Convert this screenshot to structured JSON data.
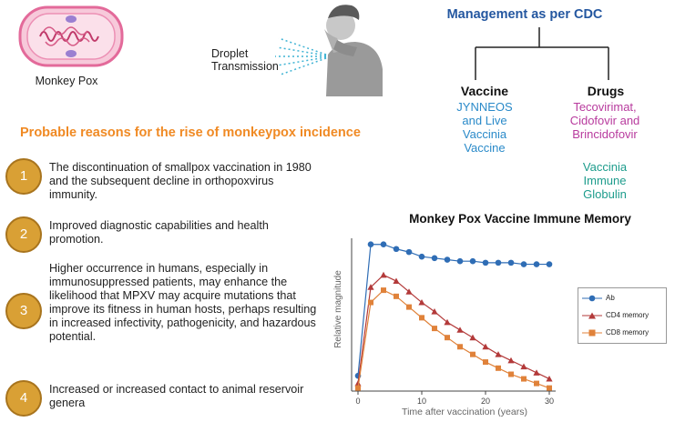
{
  "virus": {
    "label": "Monkey Pox"
  },
  "transmission": {
    "line1": "Droplet",
    "line2": "Transmission"
  },
  "management": {
    "title": "Management as per CDC",
    "vaccine": {
      "heading": "Vaccine",
      "lines": [
        "JYNNEOS",
        "and Live",
        "Vaccinia",
        "Vaccine"
      ]
    },
    "drugs": {
      "heading": "Drugs",
      "lines": [
        "Tecovirimat,",
        "Cidofovir and",
        "Brincidofovir"
      ]
    },
    "immune": {
      "lines": [
        "Vaccinia",
        "Immune",
        "Globulin"
      ]
    }
  },
  "reasons": {
    "title": "Probable reasons for the rise of monkeypox incidence",
    "items": [
      {
        "num": "1",
        "text": "The discontinuation of smallpox vaccination in 1980 and the subsequent decline in orthopoxvirus immunity."
      },
      {
        "num": "2",
        "text": "Improved diagnostic capabilities and health promotion."
      },
      {
        "num": "3",
        "text": "Higher occurrence in humans, especially in immunosuppressed patients, may enhance the likelihood that MPXV may acquire mutations that improve its fitness in human hosts, perhaps resulting in increased infectivity, pathogenicity, and hazardous potential."
      },
      {
        "num": "4",
        "text": "Increased or increased contact to animal reservoir genera"
      }
    ]
  },
  "colors": {
    "orange": "#f08a24",
    "blue": "#2457a0",
    "ab": "#2f6db5",
    "cd4": "#b33a3a",
    "cd8": "#e0823a"
  },
  "chart_data": {
    "type": "line",
    "title": "Monkey Pox Vaccine Immune Memory",
    "xlabel": "Time after vaccination (years)",
    "ylabel": "Relative magnitude",
    "xlim": [
      -1,
      31
    ],
    "ylim": [
      0,
      1
    ],
    "xticks": [
      0,
      10,
      20,
      30
    ],
    "legend_position": "right",
    "series": [
      {
        "name": "Ab",
        "marker": "circle",
        "x": [
          0,
          2,
          4,
          6,
          8,
          10,
          12,
          14,
          16,
          18,
          20,
          22,
          24,
          26,
          28,
          30
        ],
        "y": [
          0.1,
          0.96,
          0.96,
          0.93,
          0.91,
          0.88,
          0.87,
          0.86,
          0.85,
          0.85,
          0.84,
          0.84,
          0.84,
          0.83,
          0.83,
          0.83
        ]
      },
      {
        "name": "CD4 memory",
        "marker": "triangle",
        "x": [
          0,
          2,
          4,
          6,
          8,
          10,
          12,
          14,
          16,
          18,
          20,
          22,
          24,
          26,
          28,
          30
        ],
        "y": [
          0.05,
          0.68,
          0.76,
          0.72,
          0.65,
          0.58,
          0.52,
          0.45,
          0.4,
          0.35,
          0.29,
          0.24,
          0.2,
          0.16,
          0.12,
          0.08
        ]
      },
      {
        "name": "CD8 memory",
        "marker": "square",
        "x": [
          0,
          2,
          4,
          6,
          8,
          10,
          12,
          14,
          16,
          18,
          20,
          22,
          24,
          26,
          28,
          30
        ],
        "y": [
          0.02,
          0.58,
          0.66,
          0.62,
          0.55,
          0.48,
          0.41,
          0.35,
          0.29,
          0.24,
          0.19,
          0.15,
          0.11,
          0.08,
          0.05,
          0.02
        ]
      }
    ]
  }
}
